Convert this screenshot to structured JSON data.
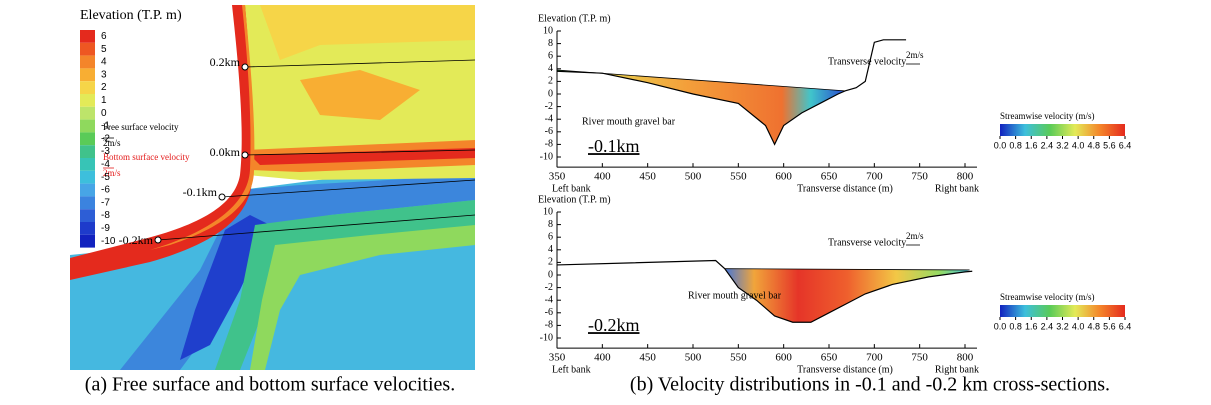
{
  "panel_a": {
    "colorbar_title": "Elevation (T.P. m)",
    "colorbar_ticks": [
      6,
      5,
      4,
      3,
      2,
      1,
      0,
      -1,
      -2,
      -3,
      -4,
      -5,
      -6,
      -7,
      -8,
      -9,
      -10
    ],
    "colorbar_colors": [
      "#e42a1d",
      "#ee5722",
      "#f4852a",
      "#f8ae33",
      "#f6d548",
      "#e3ea58",
      "#bde46a",
      "#8fd95d",
      "#5acb58",
      "#40c28b",
      "#37c4b6",
      "#3dbfdc",
      "#47a5e6",
      "#3b83df",
      "#2d5ed6",
      "#1e3bcb",
      "#1222bf"
    ],
    "section_labels": [
      "0.2km",
      "0.0km",
      "-0.1km",
      "-0.2km"
    ],
    "free_label": "Free surface velocity",
    "free_scale": "2m/s",
    "bottom_label": "Bottom surface velocity",
    "bottom_scale": "2m/s",
    "caption": "(a) Free surface and bottom surface velocities."
  },
  "panel_b": {
    "caption": "(b) Velocity distributions in -0.1 and -0.2 km cross-sections.",
    "sections": [
      {
        "type": "line",
        "label": "-0.1km",
        "y_label": "Elevation (T.P. m)",
        "x_label": "Transverse distance (m)",
        "left_label": "Left bank",
        "right_label": "Right bank",
        "annotation": "River mouth gravel bar",
        "velocity_label": "Transverse velocity",
        "velocity_scale": "2m/s",
        "colorbar_title": "Streamwise velocity (m/s)",
        "colorbar_ticks": [
          {
            "value": 0,
            "label": "0.0"
          },
          0.8,
          1.6,
          2.4,
          3.2,
          {
            "value": 4,
            "label": "4.0"
          },
          4.8,
          5.6,
          6.4
        ],
        "xlim": [
          350,
          800
        ],
        "ylim": [
          -11.6,
          10
        ],
        "xticks": [
          350,
          400,
          450,
          500,
          550,
          600,
          650,
          700,
          750,
          800
        ],
        "yticks": [
          10,
          8,
          6,
          4,
          2,
          0,
          -2,
          -4,
          -6,
          -8,
          -10
        ],
        "bed_x": [
          350,
          400,
          450,
          500,
          550,
          580,
          590,
          600,
          620,
          640,
          660,
          668,
          680,
          690,
          700,
          710,
          735
        ],
        "bed": [
          3.6,
          3.3,
          1.8,
          0,
          -1.5,
          -5,
          -8,
          -5,
          -3,
          -1.5,
          0,
          0.5,
          1,
          2,
          8.2,
          8.6,
          8.6
        ],
        "surface_x": [
          350,
          668
        ],
        "surface": [
          3.8,
          0.5
        ]
      },
      {
        "type": "line",
        "label": "-0.2km",
        "y_label": "Elevation (T.P. m)",
        "x_label": "Transverse distance (m)",
        "left_label": "Left bank",
        "right_label": "Right bank",
        "annotation": "River mouth gravel bar",
        "velocity_label": "Transverse velocity",
        "velocity_scale": "2m/s",
        "colorbar_title": "Streamwise velocity (m/s)",
        "colorbar_ticks": [
          {
            "value": 0,
            "label": "0.0"
          },
          0.8,
          1.6,
          2.4,
          3.2,
          {
            "value": 4,
            "label": "4.0"
          },
          4.8,
          5.6,
          6.4
        ],
        "xlim": [
          350,
          800
        ],
        "ylim": [
          -11.6,
          10
        ],
        "xticks": [
          350,
          400,
          450,
          500,
          550,
          600,
          650,
          700,
          750,
          800
        ],
        "yticks": [
          10,
          8,
          6,
          4,
          2,
          0,
          -2,
          -4,
          -6,
          -8,
          -10
        ],
        "bed_x": [
          350,
          525,
          535,
          550,
          570,
          590,
          610,
          630,
          650,
          670,
          690,
          720,
          760,
          800,
          808
        ],
        "bed": [
          1.6,
          2.3,
          1,
          -2,
          -4,
          -6.5,
          -7.5,
          -7.5,
          -6,
          -4.5,
          -3,
          -1.5,
          -0.3,
          0.5,
          0.6
        ],
        "surface_x": [
          535,
          805
        ],
        "surface": [
          1,
          0.8
        ]
      }
    ]
  }
}
